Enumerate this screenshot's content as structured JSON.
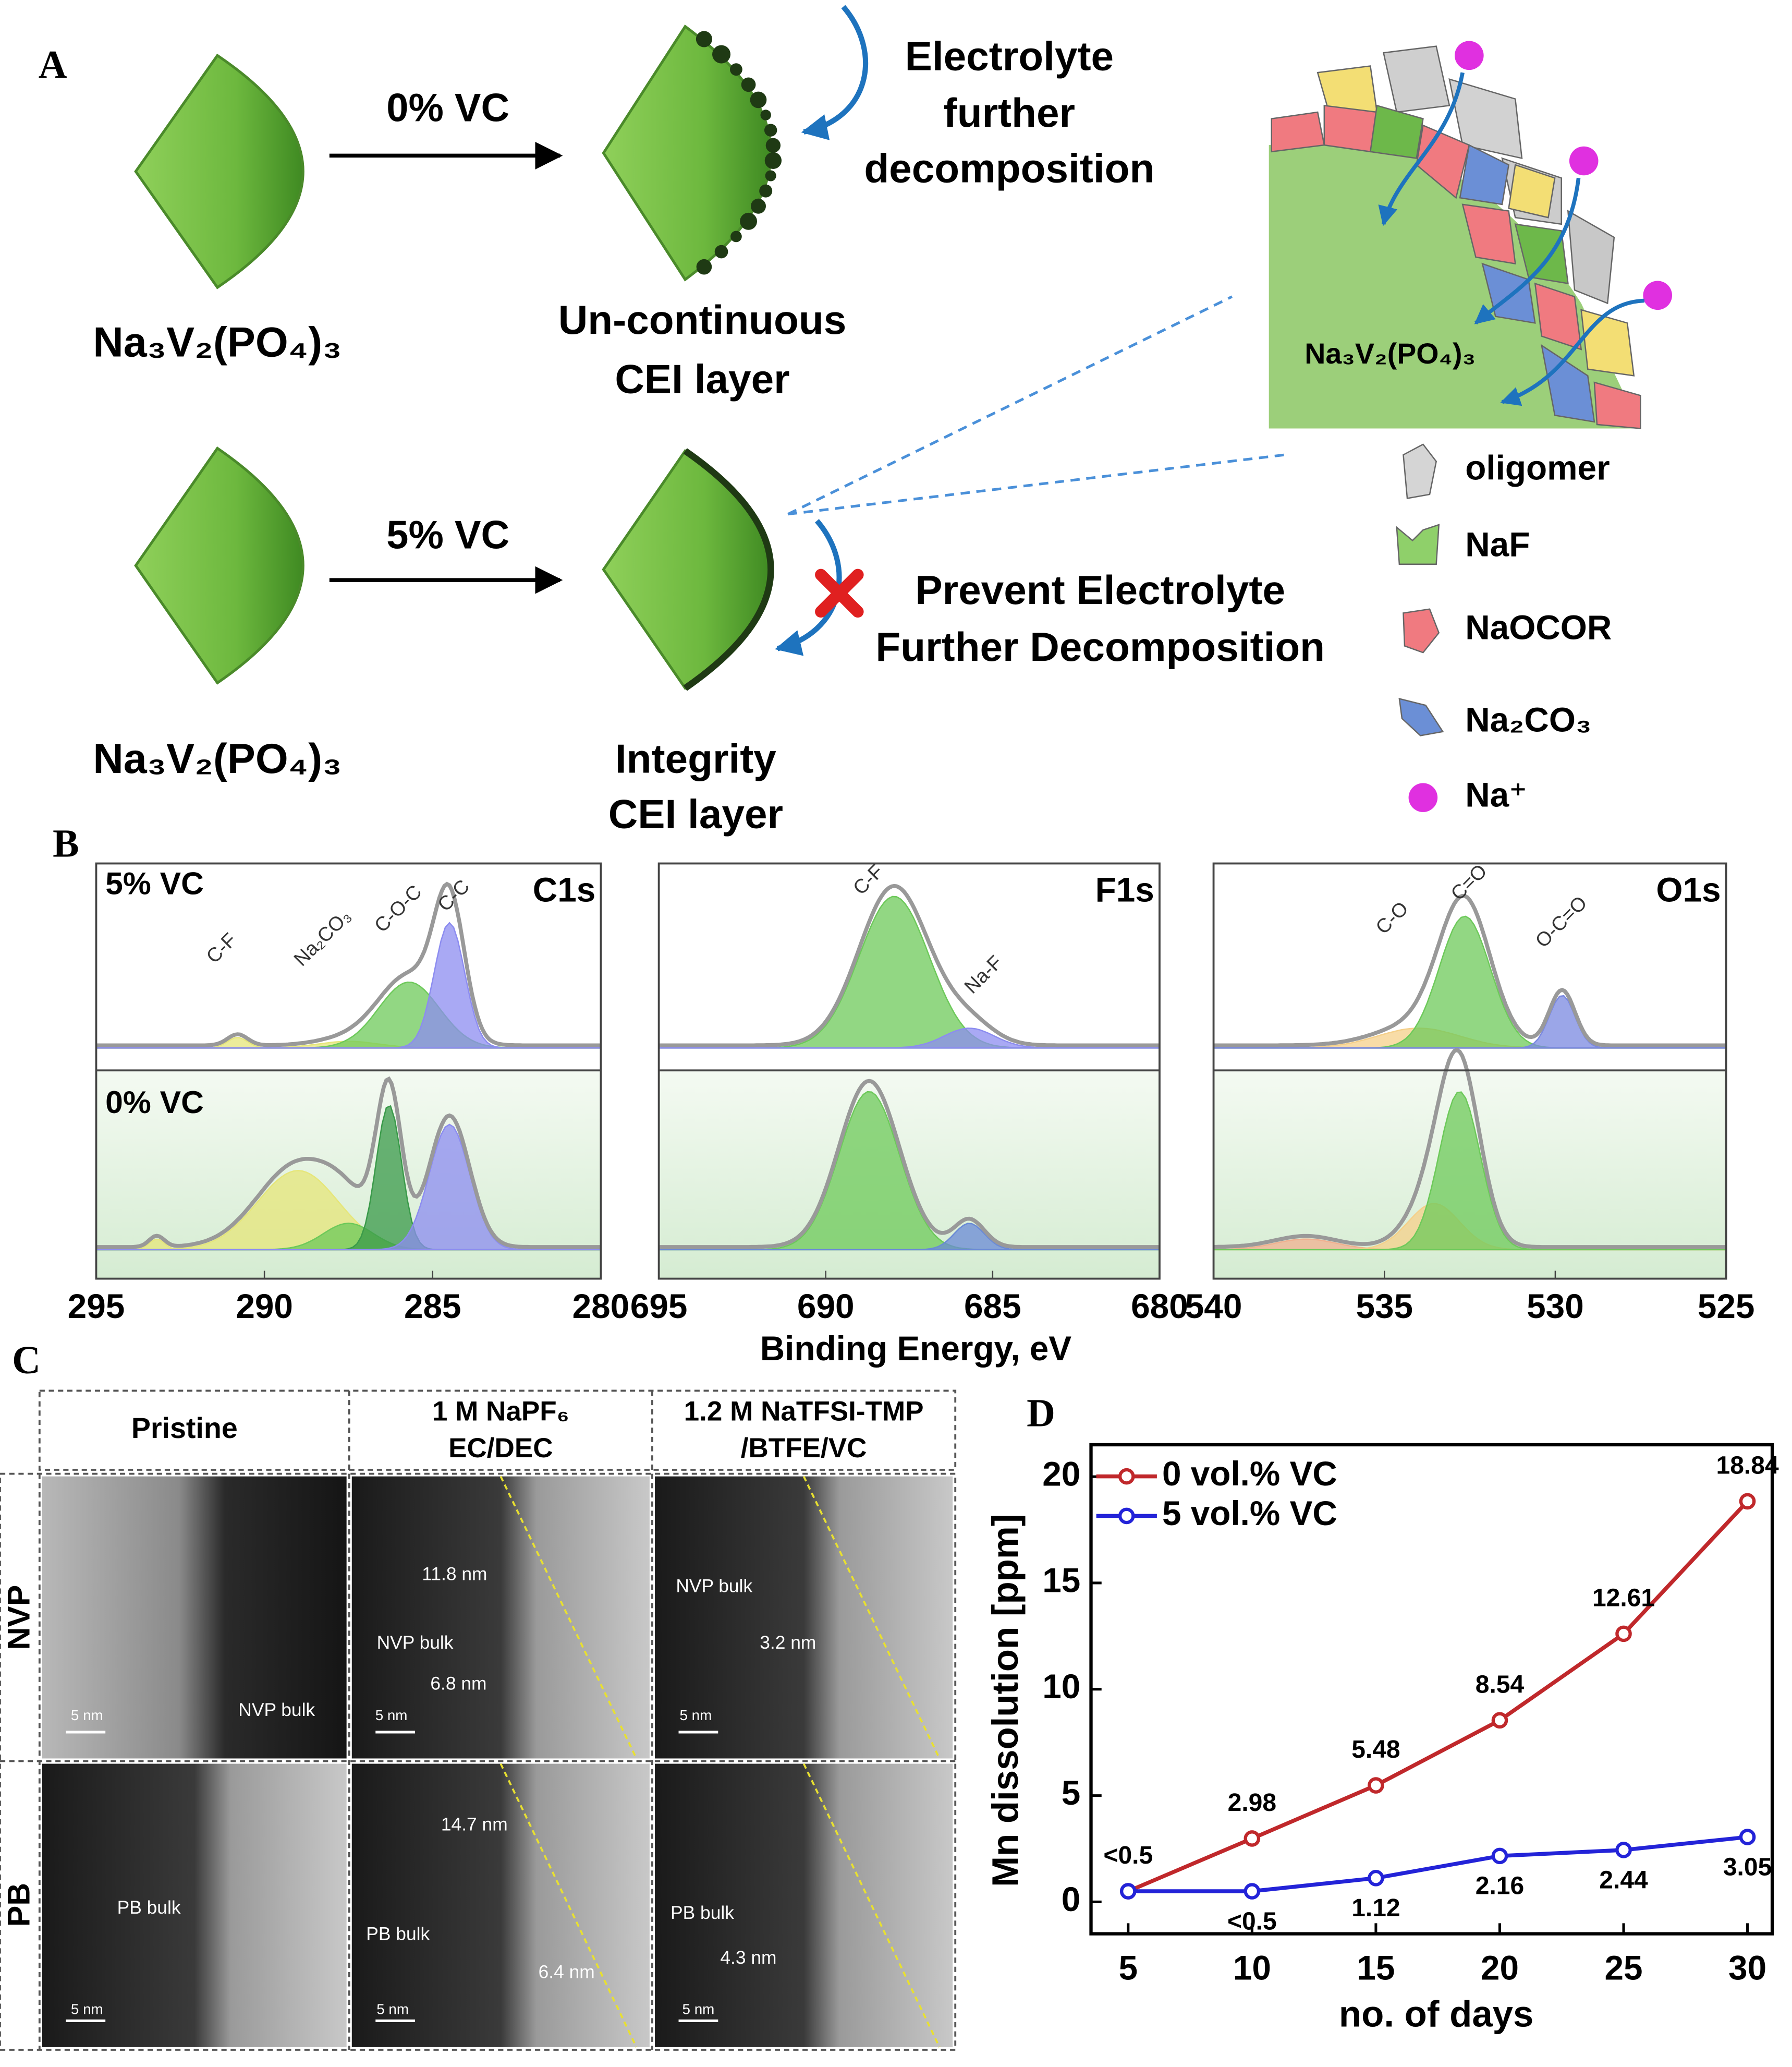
{
  "panel_a": {
    "label": "A",
    "row1": {
      "compound": "Na₃V₂(PO₄)₃",
      "condition": "0% VC",
      "result": [
        "Un-continuous",
        "CEI layer"
      ],
      "note": [
        "Electrolyte",
        "further",
        "decomposition"
      ]
    },
    "row2": {
      "compound": "Na₃V₂(PO₄)₃",
      "condition": "5% VC",
      "result": [
        "Integrity",
        "CEI layer"
      ],
      "note": [
        "Prevent Electrolyte",
        "Further Decomposition"
      ]
    },
    "inset_label": "Na₃V₂(PO₄)₃",
    "legend": [
      "oligomer",
      "NaF",
      "NaOCOR",
      "Na₂CO₃",
      "Na⁺"
    ]
  },
  "panel_b": {
    "label": "B",
    "rows": [
      "5% VC",
      "0% VC"
    ],
    "xlabel": "Binding Energy, eV"
  },
  "panel_c": {
    "label": "C",
    "columns": [
      [
        "Pristine"
      ],
      [
        "1 M NaPF₆",
        "EC/DEC"
      ],
      [
        "1.2 M NaTFSI-TMP",
        "/BTFE/VC"
      ]
    ],
    "rows": [
      "NVP",
      "PB"
    ],
    "images": [
      [
        "5 nm",
        "NVP bulk"
      ],
      [
        "5 nm",
        "NVP bulk",
        "11.8 nm",
        "6.8 nm"
      ],
      [
        "5 nm",
        "NVP bulk",
        "3.2 nm"
      ],
      [
        "5 nm",
        "PB bulk"
      ],
      [
        "5 nm",
        "PB bulk",
        "14.7 nm",
        "6.4 nm"
      ],
      [
        "5 nm",
        "PB bulk",
        "4.3 nm"
      ]
    ]
  },
  "panel_d": {
    "label": "D"
  },
  "chart_data": [
    {
      "type": "xps",
      "title": "C1s",
      "xlim": [
        295,
        280
      ],
      "xticks": [
        295,
        290,
        285,
        280
      ],
      "annotations": [
        "C-F",
        "Na₂CO₃",
        "C-O-C",
        "C-C"
      ]
    },
    {
      "type": "xps",
      "title": "F1s",
      "xlim": [
        695,
        680
      ],
      "xticks": [
        695,
        690,
        685,
        680
      ],
      "annotations": [
        "C-F",
        "Na-F"
      ]
    },
    {
      "type": "xps",
      "title": "O1s",
      "xlim": [
        540,
        525
      ],
      "xticks": [
        540,
        535,
        530,
        525
      ],
      "annotations": [
        "C-O",
        "C=O",
        "O-C=O"
      ]
    },
    {
      "type": "line",
      "xlabel": "no. of days",
      "ylabel": "Mn dissolution [ppm]",
      "x": [
        5,
        10,
        15,
        20,
        25,
        30
      ],
      "xlim": [
        3.5,
        31
      ],
      "xticks": [
        5,
        10,
        15,
        20,
        25,
        30
      ],
      "ylim": [
        -1.5,
        21.5
      ],
      "yticks": [
        0,
        5,
        10,
        15,
        20
      ],
      "series": [
        {
          "name": "0 vol.% VC",
          "color": "#c0282b",
          "values": [
            0.5,
            2.98,
            5.48,
            8.54,
            12.61,
            18.84
          ],
          "value_labels": [
            "<0.5",
            "2.98",
            "5.48",
            "8.54",
            "12.61",
            "18.84"
          ]
        },
        {
          "name": "5 vol.% VC",
          "color": "#2323d8",
          "values": [
            0.5,
            0.5,
            1.12,
            2.16,
            2.44,
            3.05
          ],
          "value_labels": [
            null,
            "<0.5",
            "1.12",
            "2.16",
            "2.44",
            "3.05"
          ]
        }
      ]
    }
  ]
}
